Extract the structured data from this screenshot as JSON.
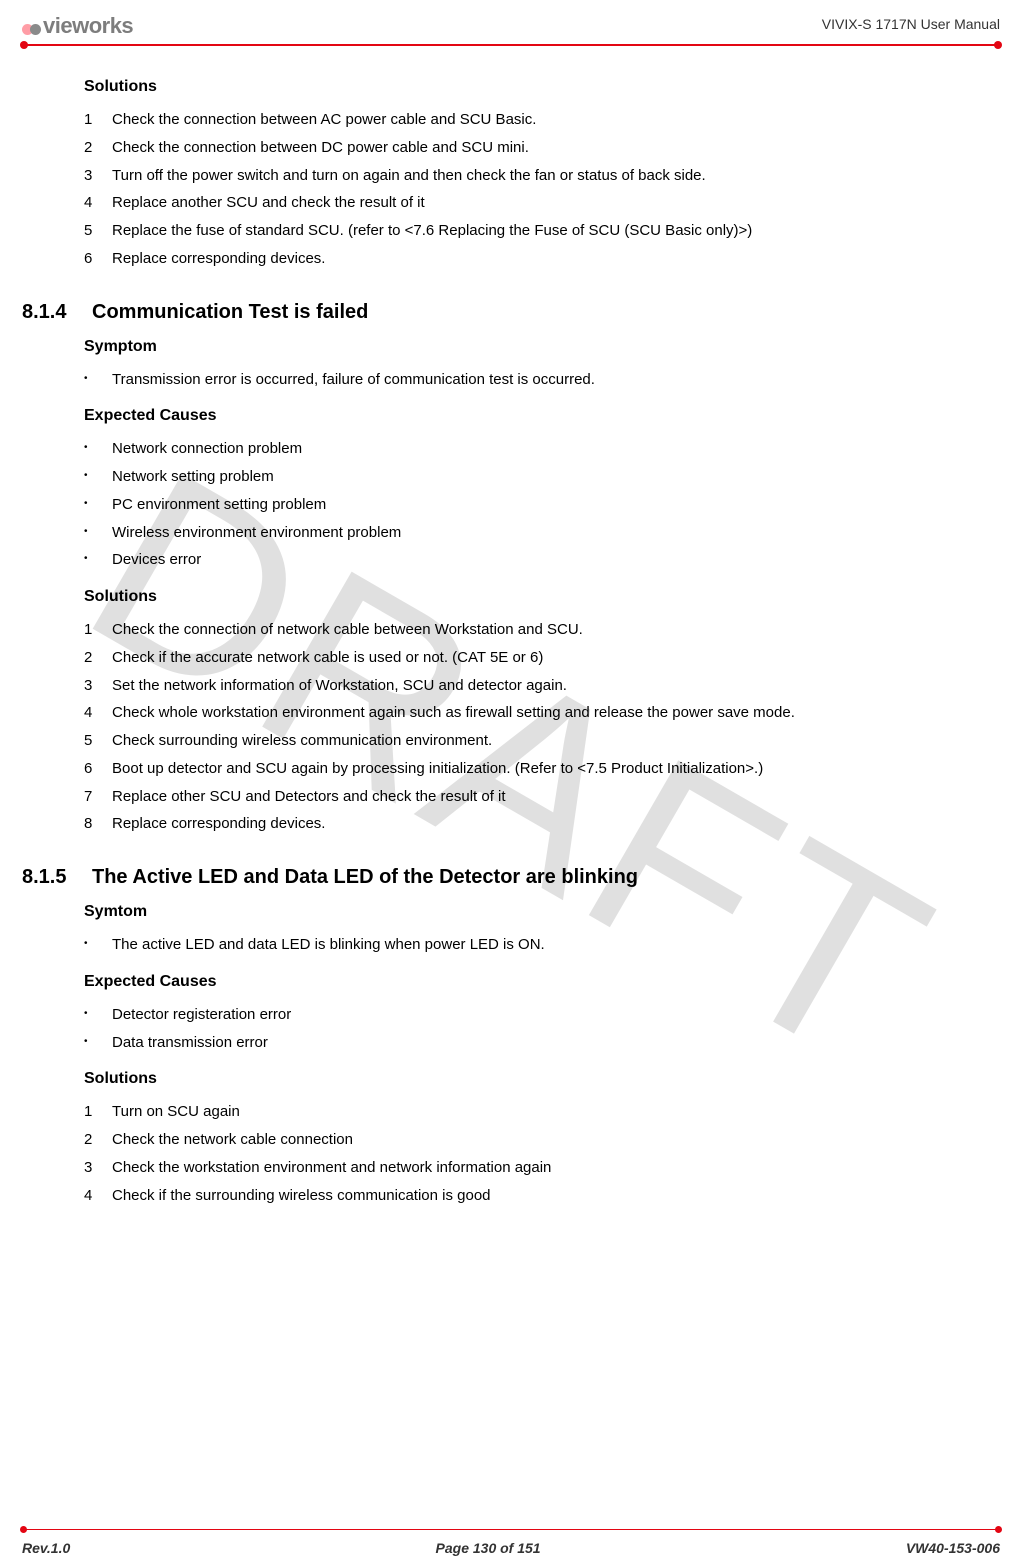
{
  "watermark": "DRAFT",
  "header": {
    "logo_text": "vieworks",
    "doc_title": "VIVIX-S 1717N User Manual"
  },
  "top_block": {
    "heading": "Solutions",
    "items": [
      "Check the connection between AC power cable and SCU Basic.",
      "Check the connection between DC power cable and SCU mini.",
      "Turn off the power switch and turn on again and then check the fan or status of back side.",
      "Replace another SCU and check the result of it",
      "Replace the fuse of standard SCU. (refer to <7.6 Replacing the Fuse of SCU (SCU Basic only)>)",
      "Replace corresponding devices."
    ]
  },
  "sec_814": {
    "num": "8.1.4",
    "title": "Communication Test is failed",
    "symptom_head": "Symptom",
    "symptom_items": [
      "Transmission error is occurred, failure of communication test is occurred."
    ],
    "causes_head": "Expected Causes",
    "causes_items": [
      "Network connection problem",
      "Network setting problem",
      "PC environment setting problem",
      "Wireless environment environment problem",
      "Devices error"
    ],
    "solutions_head": "Solutions",
    "solutions_items": [
      "Check the connection of network cable between Workstation and SCU.",
      "Check if the accurate network cable is used or not. (CAT 5E or 6)",
      "Set the network information of Workstation, SCU and detector again.",
      "Check whole workstation environment again such as firewall setting and release the power save mode.",
      "Check surrounding wireless communication environment.",
      "Boot up detector and SCU again by processing initialization. (Refer to <7.5 Product Initialization>.)",
      "Replace other SCU and Detectors and check the result of it",
      "Replace corresponding devices."
    ]
  },
  "sec_815": {
    "num": "8.1.5",
    "title": "The Active LED and Data LED of the Detector are blinking",
    "symptom_head": "Symtom",
    "symptom_items": [
      "The active LED and data LED is blinking when power LED is ON."
    ],
    "causes_head": "Expected Causes",
    "causes_items": [
      "Detector registeration error",
      "Data transmission error"
    ],
    "solutions_head": "Solutions",
    "solutions_items": [
      "Turn on SCU again",
      "Check the network cable connection",
      "Check the workstation environment and network information again",
      "Check if the surrounding wireless communication is good"
    ]
  },
  "footer": {
    "left": "Rev.1.0",
    "center": "Page 130 of 151",
    "right": "VW40-153-006"
  }
}
